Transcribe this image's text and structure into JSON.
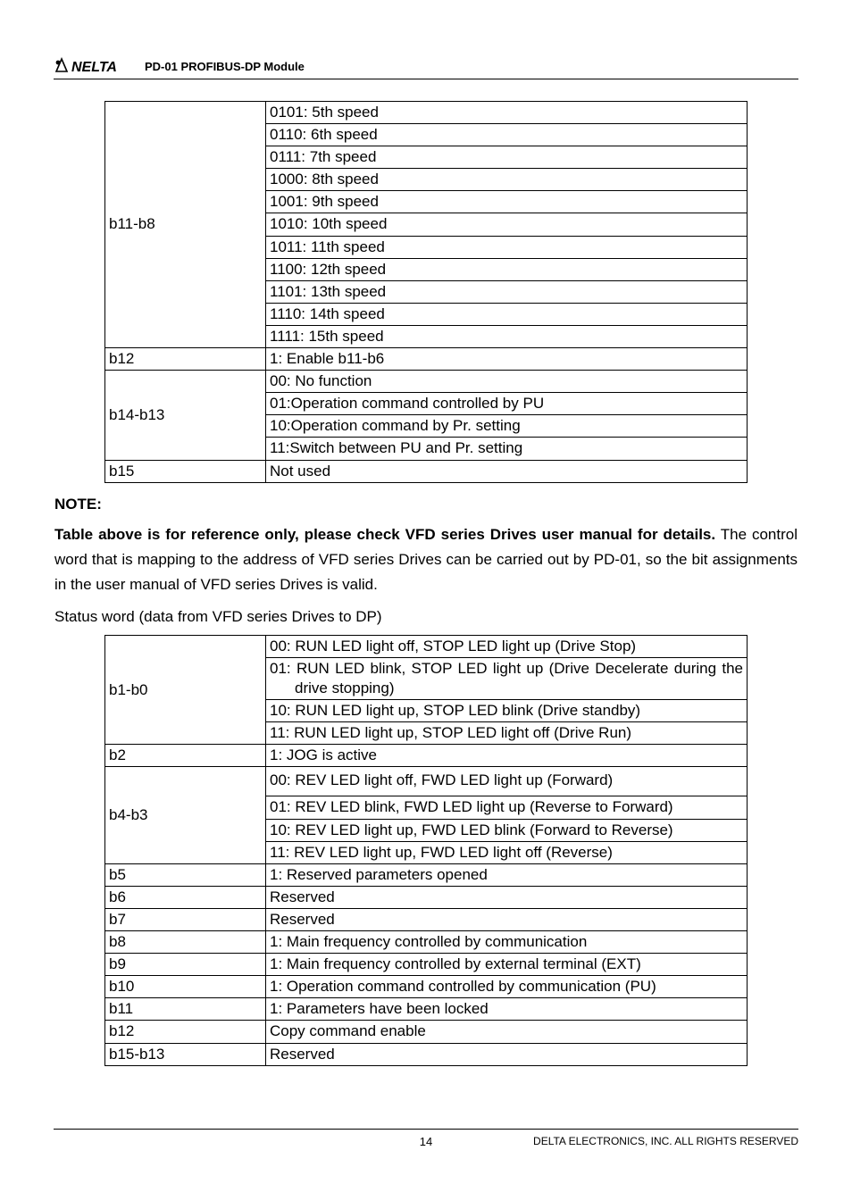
{
  "header": {
    "title": "PD-01 PROFIBUS-DP Module"
  },
  "table1": {
    "rows": [
      {
        "bit": "b11-b8",
        "values": [
          "0101: 5th speed",
          "0110: 6th speed",
          "0111: 7th speed",
          "1000: 8th speed",
          "1001: 9th speed",
          "1010: 10th speed",
          "1011: 11th speed",
          "1100: 12th speed",
          "1101: 13th speed",
          "1110: 14th speed",
          "1111: 15th speed"
        ]
      },
      {
        "bit": "b12",
        "values": [
          "1: Enable b11-b6"
        ]
      },
      {
        "bit": "b14-b13",
        "values": [
          "00: No function",
          "01:Operation command controlled by PU",
          "10:Operation command by Pr. setting",
          "11:Switch between PU and Pr. setting"
        ]
      },
      {
        "bit": "b15",
        "values": [
          "Not used"
        ]
      }
    ]
  },
  "note": {
    "label": "NOTE:",
    "bold_part": "Table above is for reference only, please check VFD series Drives user manual for details.",
    "rest": " The control word that is mapping to the address of VFD series Drives can be carried out by PD-01, so the bit assignments in the user manual of VFD series Drives is valid.",
    "status_line": "Status word (data from VFD series Drives to DP)"
  },
  "table2": {
    "rows": [
      {
        "bit": "b1-b0",
        "values": [
          "00: RUN LED light off, STOP LED light up (Drive Stop)",
          "01: RUN LED blink, STOP LED light up (Drive Decelerate during the drive stopping)",
          "10: RUN LED light up, STOP LED blink (Drive standby)",
          "11: RUN LED light up, STOP LED light off (Drive Run)"
        ],
        "justify": [
          false,
          true,
          false,
          false
        ]
      },
      {
        "bit": "b2",
        "values": [
          "1: JOG is active"
        ]
      },
      {
        "bit": "b4-b3",
        "values": [
          "00: REV LED light off, FWD LED light up (Forward)",
          "01: REV LED blink, FWD LED light up (Reverse to Forward)",
          "10: REV LED light up, FWD LED blink (Forward to Reverse)",
          "11: REV LED light up, FWD LED light off (Reverse)"
        ],
        "tallFirst": true
      },
      {
        "bit": "b5",
        "values": [
          "1: Reserved parameters opened"
        ]
      },
      {
        "bit": "b6",
        "values": [
          "Reserved"
        ]
      },
      {
        "bit": "b7",
        "values": [
          "Reserved"
        ]
      },
      {
        "bit": "b8",
        "values": [
          "1: Main frequency controlled by communication"
        ]
      },
      {
        "bit": "b9",
        "values": [
          "1: Main frequency controlled by external terminal (EXT)"
        ]
      },
      {
        "bit": "b10",
        "values": [
          "1: Operation command controlled by communication (PU)"
        ]
      },
      {
        "bit": "b11",
        "values": [
          "1: Parameters have been locked"
        ]
      },
      {
        "bit": "b12",
        "values": [
          "Copy command enable"
        ]
      },
      {
        "bit": "b15-b13",
        "values": [
          "Reserved"
        ]
      }
    ]
  },
  "footer": {
    "page": "14",
    "rights": "DELTA ELECTRONICS, INC. ALL RIGHTS RESERVED"
  }
}
